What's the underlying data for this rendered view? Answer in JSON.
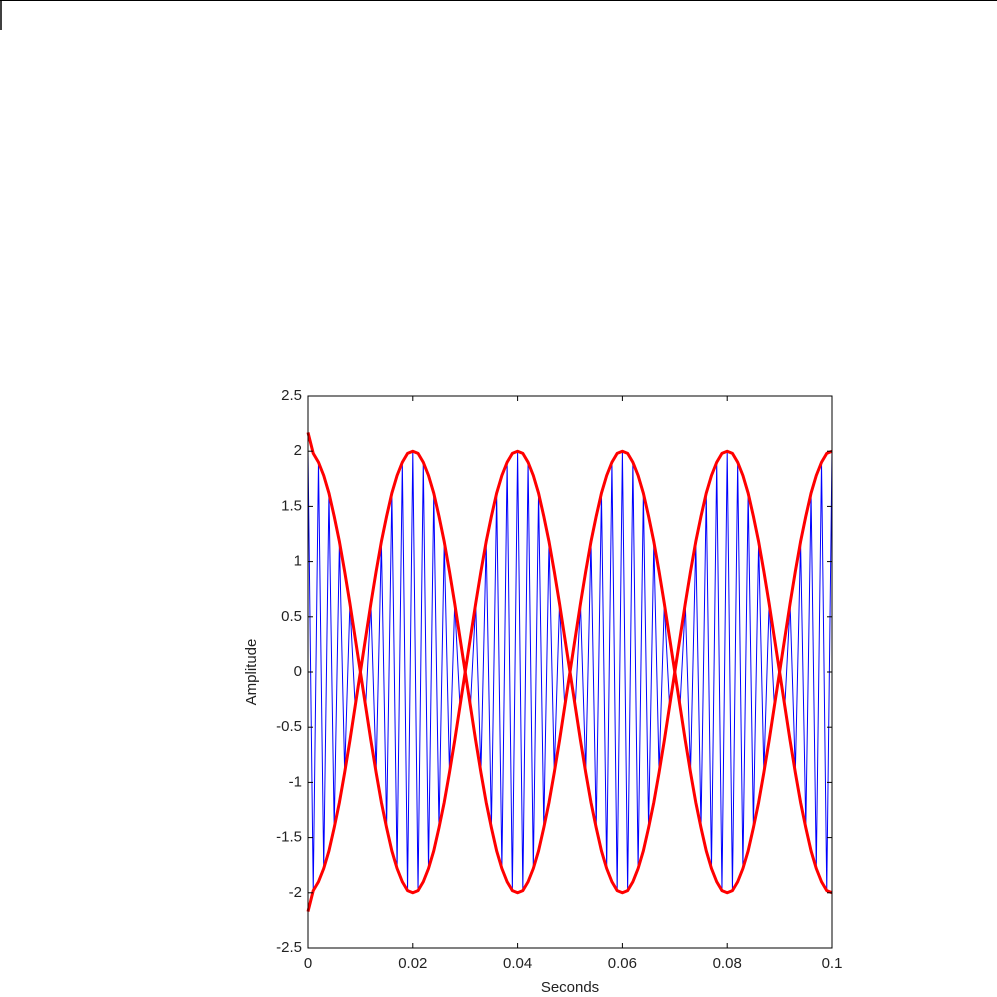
{
  "chart_data": {
    "type": "line",
    "xlabel": "Seconds",
    "ylabel": "Amplitude",
    "xlim": [
      0,
      0.1
    ],
    "xticks": [
      0,
      0.02,
      0.04,
      0.06,
      0.08,
      0.1
    ],
    "ylim": [
      -2.5,
      2.5
    ],
    "yticks": [
      -2.5,
      -2,
      -1.5,
      -1,
      -0.5,
      0,
      0.5,
      1,
      1.5,
      2,
      2.5
    ],
    "x": [
      0,
      0.001,
      0.002,
      0.003,
      0.004,
      0.005,
      0.006,
      0.007,
      0.008,
      0.009,
      0.01,
      0.011,
      0.012,
      0.013,
      0.014,
      0.015,
      0.016,
      0.017,
      0.018,
      0.019,
      0.02,
      0.021,
      0.022,
      0.023,
      0.024,
      0.025,
      0.026,
      0.027,
      0.028,
      0.029,
      0.03,
      0.031,
      0.032,
      0.033,
      0.034,
      0.035,
      0.036,
      0.037,
      0.038,
      0.039,
      0.04,
      0.041,
      0.042,
      0.043,
      0.044,
      0.045,
      0.046,
      0.047,
      0.048,
      0.049,
      0.05,
      0.051,
      0.052,
      0.053,
      0.054,
      0.055,
      0.056,
      0.057,
      0.058,
      0.059,
      0.06,
      0.061,
      0.062,
      0.063,
      0.064,
      0.065,
      0.066,
      0.067,
      0.068,
      0.069,
      0.07,
      0.071,
      0.072,
      0.073,
      0.074,
      0.075,
      0.076,
      0.077,
      0.078,
      0.079,
      0.08,
      0.081,
      0.082,
      0.083,
      0.084,
      0.085,
      0.086,
      0.087,
      0.088,
      0.089,
      0.09,
      0.091,
      0.092,
      0.093,
      0.094,
      0.095,
      0.096,
      0.097,
      0.098,
      0.099,
      0.1
    ],
    "series": [
      {
        "color": "#0000ff",
        "width": 1,
        "values": [
          2,
          -1.98,
          1.9,
          -1.78,
          1.62,
          -1.41,
          1.18,
          -0.91,
          0.62,
          -0.31,
          0,
          -0.31,
          0.62,
          -0.91,
          1.18,
          -1.41,
          1.62,
          -1.78,
          1.9,
          -1.98,
          2,
          -1.98,
          1.9,
          -1.78,
          1.62,
          -1.41,
          1.18,
          -0.91,
          0.62,
          -0.31,
          0,
          -0.31,
          0.62,
          -0.91,
          1.18,
          -1.41,
          1.62,
          -1.78,
          1.9,
          -1.98,
          2,
          -1.98,
          1.9,
          -1.78,
          1.62,
          -1.41,
          1.18,
          -0.91,
          0.62,
          -0.31,
          0,
          -0.31,
          0.62,
          -0.91,
          1.18,
          -1.41,
          1.62,
          -1.78,
          1.9,
          -1.98,
          2,
          -1.98,
          1.9,
          -1.78,
          1.62,
          -1.41,
          1.18,
          -0.91,
          0.62,
          -0.31,
          0,
          -0.31,
          0.62,
          -0.91,
          1.18,
          -1.41,
          1.62,
          -1.78,
          1.9,
          -1.98,
          2,
          -1.98,
          1.9,
          -1.78,
          1.62,
          -1.41,
          1.18,
          -0.91,
          0.62,
          -0.31,
          0,
          -0.31,
          0.62,
          -0.91,
          1.18,
          -1.41,
          1.62,
          -1.78,
          1.9,
          -1.98,
          2
        ]
      },
      {
        "color": "#ff0000",
        "width": 3,
        "values": [
          2.17,
          1.98,
          1.9,
          1.78,
          1.62,
          1.41,
          1.18,
          0.91,
          0.62,
          0.31,
          0,
          0.31,
          0.62,
          0.91,
          1.18,
          1.41,
          1.62,
          1.78,
          1.9,
          1.98,
          2,
          1.98,
          1.9,
          1.78,
          1.62,
          1.41,
          1.18,
          0.91,
          0.62,
          0.31,
          0,
          0.31,
          0.62,
          0.91,
          1.18,
          1.41,
          1.62,
          1.78,
          1.9,
          1.98,
          2,
          1.98,
          1.9,
          1.78,
          1.62,
          1.41,
          1.18,
          0.91,
          0.62,
          0.31,
          0,
          0.31,
          0.62,
          0.91,
          1.18,
          1.41,
          1.62,
          1.78,
          1.9,
          1.98,
          2,
          1.98,
          1.9,
          1.78,
          1.62,
          1.41,
          1.18,
          0.91,
          0.62,
          0.31,
          0,
          0.31,
          0.62,
          0.91,
          1.18,
          1.41,
          1.62,
          1.78,
          1.9,
          1.98,
          2,
          1.98,
          1.9,
          1.78,
          1.62,
          1.41,
          1.18,
          0.91,
          0.62,
          0.31,
          0,
          0.31,
          0.62,
          0.91,
          1.18,
          1.41,
          1.62,
          1.78,
          1.9,
          1.98,
          2
        ]
      },
      {
        "color": "#ff0000",
        "width": 3,
        "values": [
          -2.17,
          -1.98,
          -1.9,
          -1.78,
          -1.62,
          -1.41,
          -1.18,
          -0.91,
          -0.62,
          -0.31,
          0,
          -0.31,
          -0.62,
          -0.91,
          -1.18,
          -1.41,
          -1.62,
          -1.78,
          -1.9,
          -1.98,
          -2,
          -1.98,
          -1.9,
          -1.78,
          -1.62,
          -1.41,
          -1.18,
          -0.91,
          -0.62,
          -0.31,
          0,
          -0.31,
          -0.62,
          -0.91,
          -1.18,
          -1.41,
          -1.62,
          -1.78,
          -1.9,
          -1.98,
          -2,
          -1.98,
          -1.9,
          -1.78,
          -1.62,
          -1.41,
          -1.18,
          -0.91,
          -0.62,
          -0.31,
          0,
          -0.31,
          -0.62,
          -0.91,
          -1.18,
          -1.41,
          -1.62,
          -1.78,
          -1.9,
          -1.98,
          -2,
          -1.98,
          -1.9,
          -1.78,
          -1.62,
          -1.41,
          -1.18,
          -0.91,
          -0.62,
          -0.31,
          0,
          -0.31,
          -0.62,
          -0.91,
          -1.18,
          -1.41,
          -1.62,
          -1.78,
          -1.9,
          -1.98,
          -2,
          -1.98,
          -1.9,
          -1.78,
          -1.62,
          -1.41,
          -1.18,
          -0.91,
          -0.62,
          -0.31,
          0,
          -0.31,
          -0.62,
          -0.91,
          -1.18,
          -1.41,
          -1.62,
          -1.78,
          -1.9,
          -1.98,
          -2
        ]
      }
    ]
  }
}
